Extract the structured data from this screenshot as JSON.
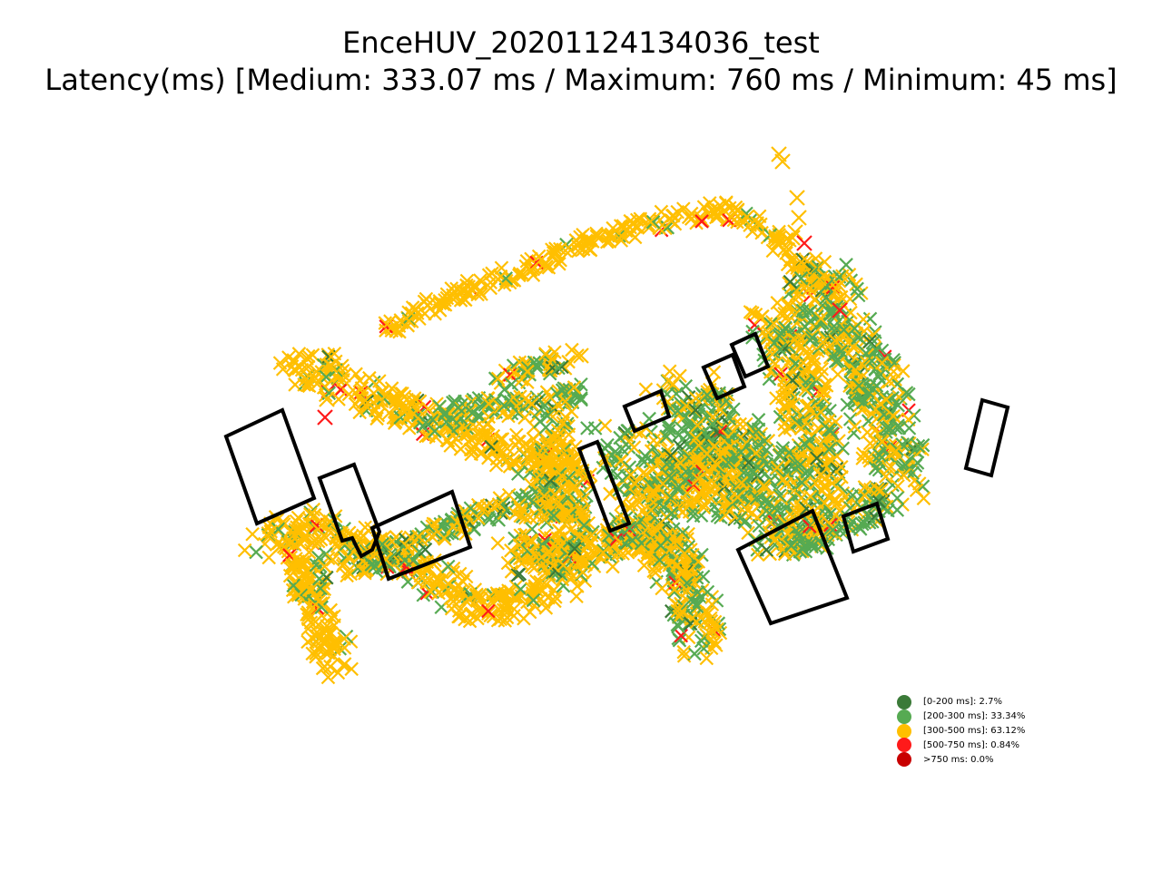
{
  "chart_data": {
    "type": "scatter",
    "title": "EnceHUV_20201124134036_test",
    "subtitle": "Latency(ms) [Medium: 333.07 ms / Maximum: 760 ms / Minimum: 45 ms]",
    "axes_visible": false,
    "marker": "x",
    "legend_position": "bottom-right",
    "legend": [
      {
        "label": "[0-200 ms]: 2.7%",
        "color": "#3b7a38",
        "percent": 2.7
      },
      {
        "label": "[200-300 ms]: 33.34%",
        "color": "#56aa52",
        "percent": 33.34
      },
      {
        "label": "[300-500 ms]: 63.12%",
        "color": "#ffbf00",
        "percent": 63.12
      },
      {
        "label": "[500-750 ms]: 0.84%",
        "color": "#ff1a1a",
        "percent": 0.84
      },
      {
        "label": ">750 ms: 0.0%",
        "color": "#c80000",
        "percent": 0.0
      }
    ]
  }
}
